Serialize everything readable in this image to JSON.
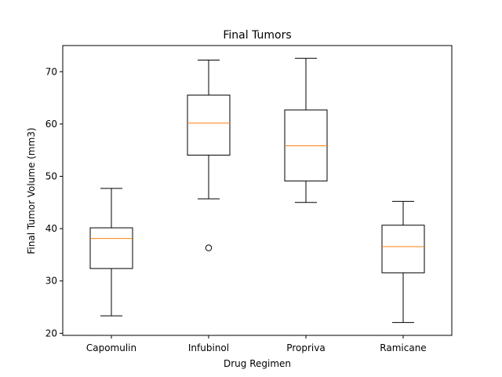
{
  "chart_data": {
    "type": "box",
    "title": "Final Tumors",
    "xlabel": "Drug Regimen",
    "ylabel": "Final Tumor Volume (mm3)",
    "ylim": [
      19.6,
      75.0
    ],
    "yticks": [
      20,
      30,
      40,
      50,
      60,
      70
    ],
    "grid": false,
    "categories": [
      "Capomulin",
      "Infubinol",
      "Propriva",
      "Ramicane"
    ],
    "boxes": [
      {
        "whisker_low": 23.34,
        "q1": 32.38,
        "median": 38.13,
        "q3": 40.16,
        "whisker_high": 47.69,
        "outliers": []
      },
      {
        "whisker_low": 45.7,
        "q1": 54.05,
        "median": 60.17,
        "q3": 65.53,
        "whisker_high": 72.23,
        "outliers": [
          36.32
        ]
      },
      {
        "whisker_low": 45.01,
        "q1": 49.12,
        "median": 55.84,
        "q3": 62.69,
        "whisker_high": 72.56,
        "outliers": []
      },
      {
        "whisker_low": 22.05,
        "q1": 31.56,
        "median": 36.56,
        "q3": 40.66,
        "whisker_high": 45.22,
        "outliers": []
      }
    ],
    "colors": {
      "box": "#000000",
      "median": "#ff7f0e",
      "outlier_edge": "#000000"
    }
  }
}
